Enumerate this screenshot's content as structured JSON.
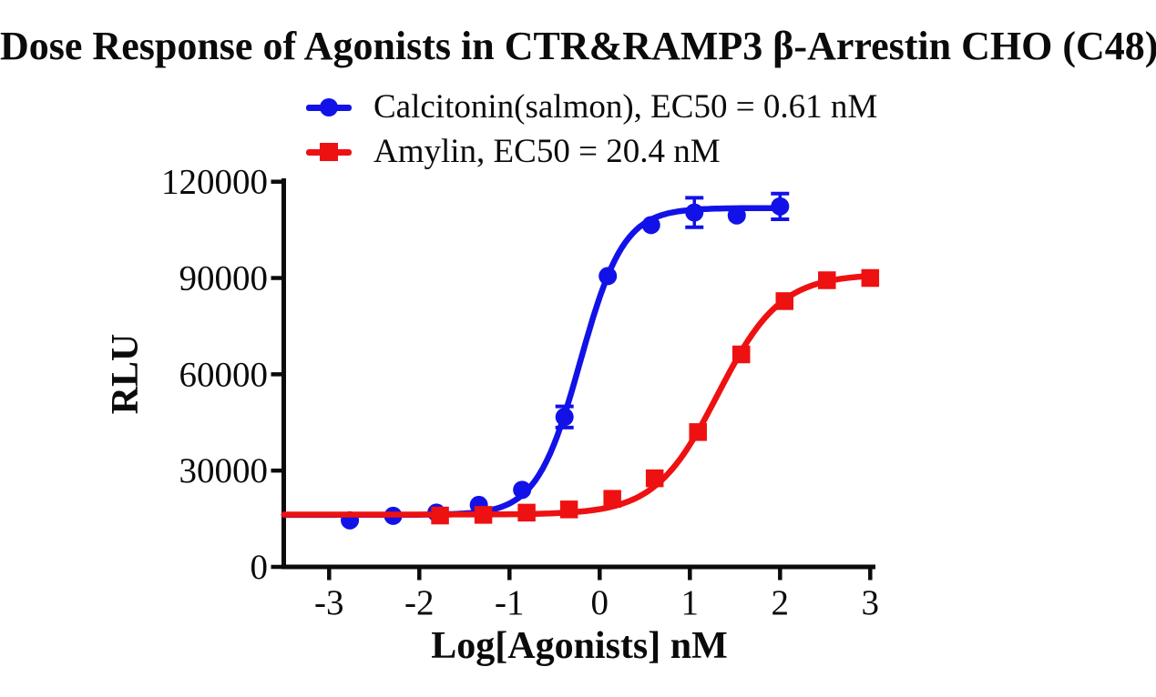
{
  "chart_data": {
    "type": "scatter",
    "title": "Dose Response of Agonists in CTR&RAMP3 β-Arrestin CHO (C48)",
    "xlabel": "Log[Agonists] nM",
    "ylabel": "RLU",
    "xlim": [
      -3.5,
      3.05
    ],
    "ylim": [
      0,
      120000
    ],
    "x_ticks": [
      -3,
      -2,
      -1,
      0,
      1,
      2,
      3
    ],
    "x_tick_labels": [
      "-3",
      "-2",
      "-1",
      "0",
      "1",
      "2",
      "3"
    ],
    "y_ticks": [
      0,
      30000,
      60000,
      90000,
      120000
    ],
    "y_tick_labels": [
      "0",
      "30000",
      "60000",
      "90000",
      "120000"
    ],
    "grid": false,
    "legend_position": "top-left above plot",
    "axis_color": "#0b0b0b",
    "series": [
      {
        "name": "Calcitonin(salmon)",
        "legend_label": "Calcitonin(salmon), EC50 = 0.61 nM",
        "ec50_nM": 0.61,
        "marker": "circle",
        "color": "#1212e8",
        "x": [
          -2.77,
          -2.29,
          -1.81,
          -1.34,
          -0.86,
          -0.39,
          0.09,
          0.57,
          1.05,
          1.52,
          2.0
        ],
        "y": [
          14500,
          15900,
          16900,
          19300,
          24000,
          46700,
          90600,
          106500,
          110400,
          109500,
          112300
        ],
        "yerr": [
          0,
          0,
          0,
          0,
          0,
          3300,
          0,
          0,
          4600,
          0,
          4000
        ],
        "fit": {
          "bottom": 16200,
          "top": 111800,
          "logEC50": -0.215,
          "hill": 1.8,
          "xmax": 2.0
        }
      },
      {
        "name": "Amylin",
        "legend_label": "Amylin, EC50 = 20.4 nM",
        "ec50_nM": 20.4,
        "marker": "square",
        "color": "#ee1111",
        "x": [
          -1.77,
          -1.29,
          -0.81,
          -0.34,
          0.14,
          0.61,
          1.09,
          1.57,
          2.05,
          2.52,
          3.0
        ],
        "y": [
          16000,
          16200,
          16900,
          17900,
          21200,
          27600,
          42000,
          66200,
          82800,
          89300,
          90000
        ],
        "yerr": [
          0,
          0,
          0,
          0,
          0,
          0,
          0,
          0,
          0,
          0,
          0
        ],
        "fit": {
          "bottom": 16300,
          "top": 91200,
          "logEC50": 1.31,
          "hill": 1.25,
          "xmax": 3.0
        }
      }
    ]
  }
}
